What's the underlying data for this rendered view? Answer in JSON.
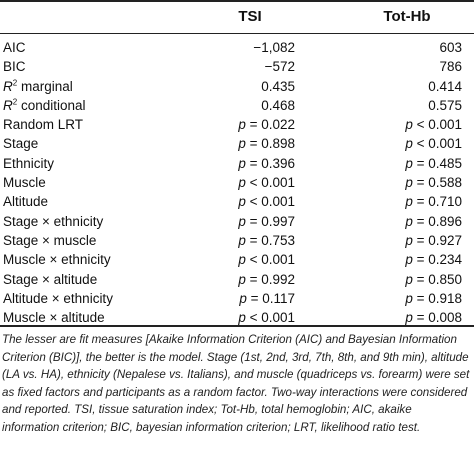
{
  "table": {
    "headers": {
      "metric": "",
      "tsi": "TSI",
      "tothb": "Tot-Hb"
    },
    "rows": [
      {
        "label": "AIC",
        "tsi": "−1,082",
        "tothb": "603"
      },
      {
        "label": "BIC",
        "tsi": "−572",
        "tothb": "786"
      },
      {
        "label_prefix": "R",
        "label_sup": "2",
        "label_suffix": " marginal",
        "tsi": "0.435",
        "tothb": "0.414"
      },
      {
        "label_prefix": "R",
        "label_sup": "2",
        "label_suffix": " conditional",
        "tsi": "0.468",
        "tothb": "0.575"
      },
      {
        "label": "Random LRT",
        "tsi": "p = 0.022",
        "tothb": "p < 0.001"
      },
      {
        "label": "Stage",
        "tsi": "p = 0.898",
        "tothb": "p < 0.001"
      },
      {
        "label": "Ethnicity",
        "tsi": "p = 0.396",
        "tothb": "p = 0.485"
      },
      {
        "label": "Muscle",
        "tsi": "p < 0.001",
        "tothb": "p = 0.588"
      },
      {
        "label": "Altitude",
        "tsi": "p < 0.001",
        "tothb": "p = 0.710"
      },
      {
        "label": "Stage × ethnicity",
        "tsi": "p = 0.997",
        "tothb": "p = 0.896"
      },
      {
        "label": "Stage × muscle",
        "tsi": "p = 0.753",
        "tothb": "p = 0.927"
      },
      {
        "label": "Muscle × ethnicity",
        "tsi": "p < 0.001",
        "tothb": "p = 0.234"
      },
      {
        "label": "Stage × altitude",
        "tsi": "p = 0.992",
        "tothb": "p = 0.850"
      },
      {
        "label": "Altitude × ethnicity",
        "tsi": "p = 0.117",
        "tothb": "p = 0.918"
      },
      {
        "label": "Muscle × altitude",
        "tsi": "p < 0.001",
        "tothb": "p = 0.008"
      }
    ]
  },
  "footnote": "The lesser are fit measures [Akaike Information Criterion (AIC) and Bayesian Information Criterion (BIC)], the better is the model. Stage (1st, 2nd, 3rd, 7th, 8th, and 9th min), altitude (LA vs. HA), ethnicity (Nepalese vs. Italians), and muscle (quadriceps vs. forearm) were set as fixed factors and participants as a random factor. Two-way interactions were considered and reported. TSI, tissue saturation index; Tot-Hb, total hemoglobin; AIC, akaike information criterion; BIC, bayesian information criterion; LRT, likelihood ratio test."
}
